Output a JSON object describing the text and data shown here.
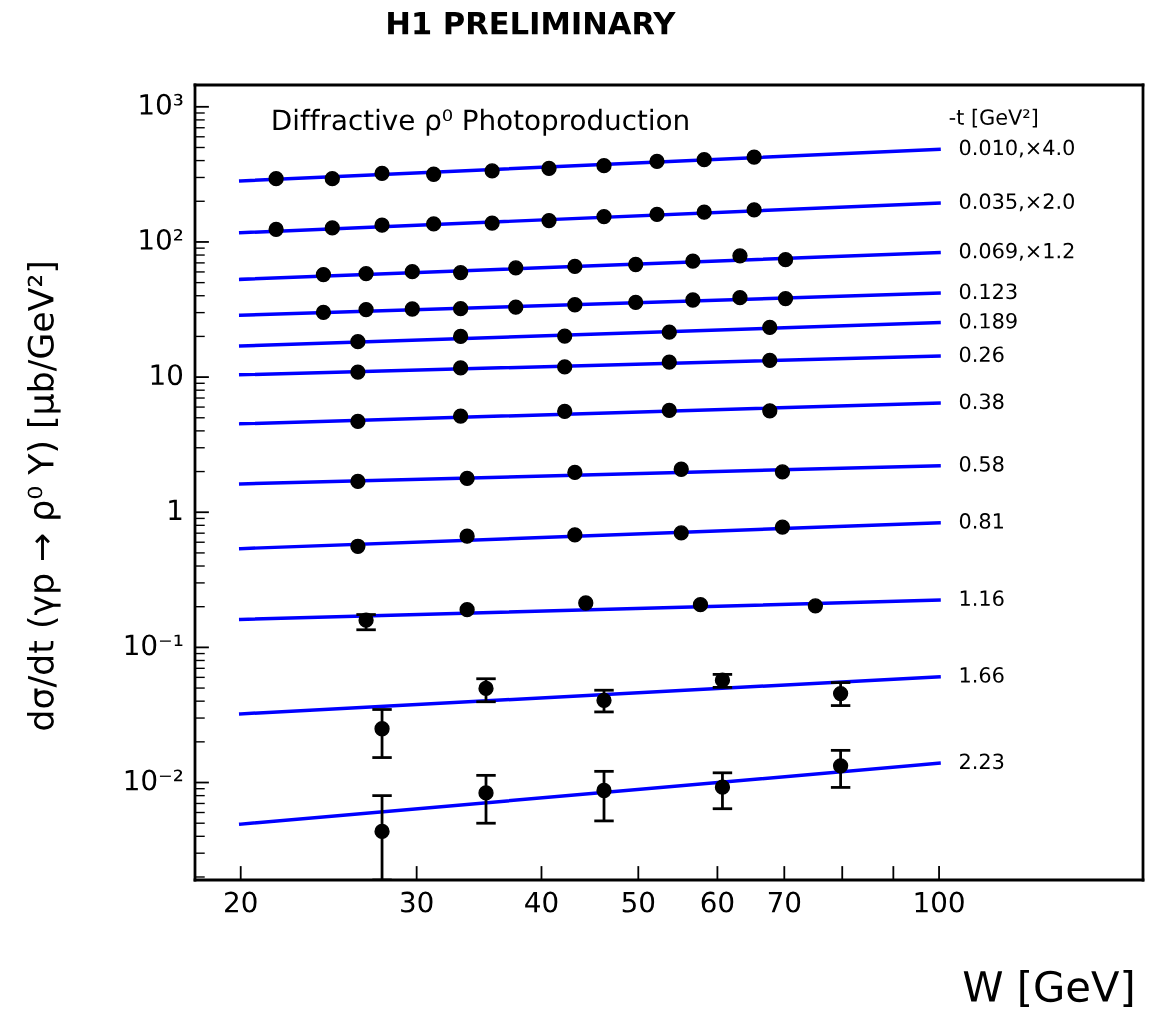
{
  "chart_data": {
    "type": "scatter",
    "title": "H1 PRELIMINARY",
    "xlabel": "W [GeV]",
    "ylabel": "dσ/dt (γp → ρ⁰ Y) [μb/GeV²]",
    "legend_title": "-t [GeV²]",
    "annotations": [
      "Diffractive ρ⁰ Photoproduction"
    ],
    "log": "xy",
    "marker": "circle",
    "xlim": [
      18,
      160
    ],
    "ylim": [
      0.0019,
      1450
    ],
    "xticks": [
      20,
      30,
      40,
      50,
      60,
      70,
      {
        "value": 80,
        "label": null
      },
      {
        "value": 90,
        "label": null
      },
      100
    ],
    "yticks": [
      {
        "value": 0.01,
        "label": "10⁻²"
      },
      {
        "value": 0.1,
        "label": "10⁻¹"
      },
      1,
      10,
      {
        "value": 100,
        "label": "10²"
      },
      {
        "value": 1000,
        "label": "10³"
      }
    ],
    "series": [
      {
        "color": "#000000",
        "x": [
          21.7,
          24.7,
          27.7,
          31.2,
          35.7,
          40.7,
          46.2,
          52.2,
          58.2,
          65.3
        ],
        "values": [
          294,
          294,
          322,
          317,
          336,
          350,
          367,
          395,
          406,
          425
        ]
      },
      {
        "color": "#000000",
        "x": [
          21.7,
          24.7,
          27.7,
          31.2,
          35.7,
          40.7,
          46.2,
          52.2,
          58.2,
          65.3
        ],
        "values": [
          124,
          127,
          133,
          136,
          138,
          144,
          154,
          160,
          166,
          173
        ]
      },
      {
        "color": "#000000",
        "x": [
          24.2,
          26.7,
          29.7,
          33.2,
          37.7,
          43.2,
          49.7,
          56.7,
          63.2,
          70.2
        ],
        "values": [
          57.4,
          58.3,
          60.3,
          59.3,
          64.3,
          65.9,
          68.1,
          72.1,
          78.9,
          73.9
        ]
      },
      {
        "color": "#000000",
        "x": [
          24.2,
          26.7,
          29.7,
          33.2,
          37.7,
          43.2,
          49.7,
          56.7,
          63.2,
          70.2
        ],
        "values": [
          30.1,
          31.6,
          31.9,
          32.1,
          32.9,
          34.3,
          35.7,
          37.2,
          38.7,
          38.1
        ]
      },
      {
        "color": "#000000",
        "x": [
          26.2,
          33.2,
          42.2,
          53.7,
          67.7
        ],
        "values": [
          18.3,
          20.0,
          20.1,
          21.5,
          23.3
        ]
      },
      {
        "color": "#000000",
        "x": [
          26.2,
          33.2,
          42.2,
          53.7,
          67.7
        ],
        "values": [
          10.9,
          11.7,
          11.9,
          12.9,
          13.3
        ]
      },
      {
        "color": "#000000",
        "x": [
          26.2,
          33.2,
          42.2,
          53.7,
          67.7
        ],
        "values": [
          4.7,
          5.15,
          5.58,
          5.67,
          5.63
        ]
      },
      {
        "color": "#000000",
        "x": [
          26.2,
          33.7,
          43.2,
          55.2,
          69.7
        ],
        "values": [
          1.69,
          1.78,
          1.97,
          2.08,
          1.99
        ]
      },
      {
        "color": "#000000",
        "x": [
          26.2,
          33.7,
          43.2,
          55.2,
          69.7
        ],
        "values": [
          0.56,
          0.665,
          0.681,
          0.704,
          0.776
        ]
      },
      {
        "color": "#000000",
        "x": [
          26.7,
          33.7,
          44.3,
          57.7,
          75.2
        ],
        "values": [
          0.159,
          0.19,
          0.213,
          0.207,
          0.203
        ],
        "errors": [
          [
            0.135,
            0.175
          ],
          null,
          null,
          null,
          null
        ]
      },
      {
        "color": "#000000",
        "x": [
          27.7,
          35.2,
          46.2,
          60.7,
          79.7
        ],
        "values": [
          0.025,
          0.0497,
          0.0406,
          0.0572,
          0.0455
        ],
        "errors": [
          [
            0.0153,
            0.0347
          ],
          [
            0.0396,
            0.0586
          ],
          [
            0.0333,
            0.0482
          ],
          [
            0.0506,
            0.0631
          ],
          [
            0.0371,
            0.0549
          ]
        ]
      },
      {
        "color": "#000000",
        "x": [
          27.7,
          35.2,
          46.2,
          60.7,
          79.7
        ],
        "values": [
          0.00435,
          0.00838,
          0.00873,
          0.00924,
          0.0133
        ],
        "errors": [
          [
            0.0019,
            0.008
          ],
          [
            0.005,
            0.0113
          ],
          [
            0.0052,
            0.0121
          ],
          [
            0.0064,
            0.0118
          ],
          [
            0.0092,
            0.0173
          ]
        ]
      },
      {
        "type": "line",
        "marker": "none",
        "name": "0.010,×4.0",
        "color": "#0000ff",
        "x": [
          20,
          100
        ],
        "values": [
          283,
          485
        ]
      },
      {
        "type": "line",
        "marker": "none",
        "name": "0.035,×2.0",
        "color": "#0000ff",
        "x": [
          20,
          100
        ],
        "values": [
          117,
          194
        ]
      },
      {
        "type": "line",
        "marker": "none",
        "name": "0.069,×1.2",
        "color": "#0000ff",
        "x": [
          20,
          100
        ],
        "values": [
          52.9,
          83.6
        ]
      },
      {
        "type": "line",
        "marker": "none",
        "name": "0.123",
        "color": "#0000ff",
        "x": [
          20,
          100
        ],
        "values": [
          28.7,
          41.8
        ]
      },
      {
        "type": "line",
        "marker": "none",
        "name": "0.189",
        "color": "#0000ff",
        "x": [
          20,
          100
        ],
        "values": [
          17.0,
          25.3
        ]
      },
      {
        "type": "line",
        "marker": "none",
        "name": "0.26",
        "color": "#0000ff",
        "x": [
          20,
          100
        ],
        "values": [
          10.4,
          14.3
        ]
      },
      {
        "type": "line",
        "marker": "none",
        "name": "0.38",
        "color": "#0000ff",
        "x": [
          20,
          100
        ],
        "values": [
          4.51,
          6.42
        ]
      },
      {
        "type": "line",
        "marker": "none",
        "name": "0.58",
        "color": "#0000ff",
        "x": [
          20,
          100
        ],
        "values": [
          1.62,
          2.21
        ]
      },
      {
        "type": "line",
        "marker": "none",
        "name": "0.81",
        "color": "#0000ff",
        "x": [
          20,
          100
        ],
        "values": [
          0.538,
          0.836
        ]
      },
      {
        "type": "line",
        "marker": "none",
        "name": "1.16",
        "color": "#0000ff",
        "x": [
          20,
          100
        ],
        "values": [
          0.161,
          0.224
        ]
      },
      {
        "type": "line",
        "marker": "none",
        "name": "1.66",
        "color": "#0000ff",
        "x": [
          20,
          100
        ],
        "values": [
          0.0322,
          0.0606
        ]
      },
      {
        "type": "line",
        "marker": "none",
        "name": "2.23",
        "color": "#0000ff",
        "x": [
          20,
          100
        ],
        "values": [
          0.00492,
          0.0139
        ]
      }
    ]
  }
}
